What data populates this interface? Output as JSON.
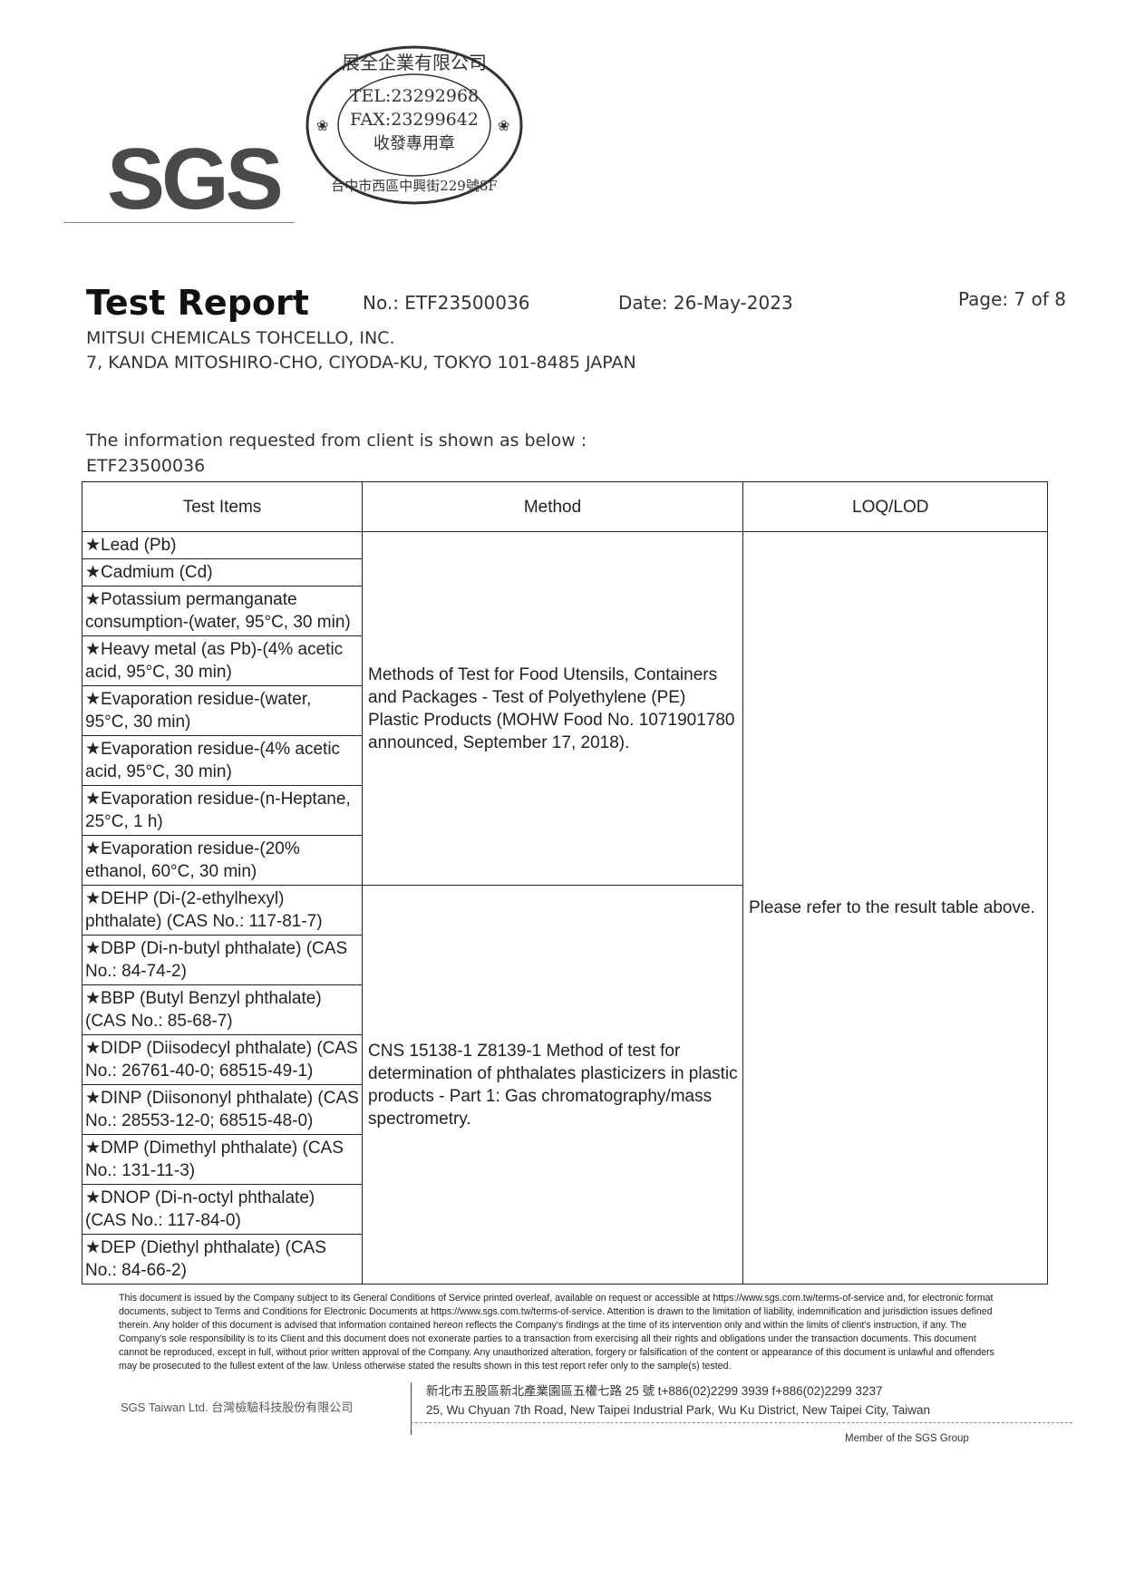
{
  "logo": {
    "text": "SGS"
  },
  "stamp": {
    "company": "展全企業有限公司",
    "tel": "TEL:23292968",
    "fax": "FAX:23299642",
    "purpose": "收發專用章",
    "address": "台中市西區中興街229號8F"
  },
  "header": {
    "title": "Test Report",
    "report_no": "No.: ETF23500036",
    "date": "Date: 26-May-2023",
    "page": "Page: 7 of 8",
    "client": "MITSUI CHEMICALS TOHCELLO, INC.",
    "client_address": "7, KANDA MITOSHIRO-CHO, CIYODA-KU, TOKYO 101-8485 JAPAN"
  },
  "intro": {
    "line1": "The information requested from client is shown as below :",
    "line2": "ETF23500036"
  },
  "table": {
    "headers": [
      "Test Items",
      "Method",
      "LOQ/LOD"
    ],
    "items": [
      "★Lead (Pb)",
      "★Cadmium (Cd)",
      "★Potassium permanganate consumption-(water, 95°C, 30 min)",
      "★Heavy metal (as Pb)-(4% acetic acid, 95°C, 30 min)",
      "★Evaporation residue-(water, 95°C, 30 min)",
      "★Evaporation residue-(4% acetic acid, 95°C, 30 min)",
      "★Evaporation residue-(n-Heptane, 25°C, 1 h)",
      "★Evaporation residue-(20% ethanol, 60°C, 30 min)",
      "★DEHP (Di-(2-ethylhexyl) phthalate) (CAS No.: 117-81-7)",
      "★DBP (Di-n-butyl phthalate) (CAS No.: 84-74-2)",
      "★BBP (Butyl Benzyl phthalate) (CAS No.: 85-68-7)",
      "★DIDP (Diisodecyl phthalate) (CAS No.: 26761-40-0; 68515-49-1)",
      "★DINP (Diisononyl phthalate) (CAS No.: 28553-12-0; 68515-48-0)",
      "★DMP (Dimethyl phthalate) (CAS No.: 131-11-3)",
      "★DNOP (Di-n-octyl phthalate) (CAS No.: 117-84-0)",
      "★DEP (Diethyl phthalate) (CAS No.: 84-66-2)"
    ],
    "method1": "Methods of Test for Food Utensils, Containers and Packages - Test of Polyethylene (PE) Plastic Products (MOHW Food No. 1071901780 announced, September 17, 2018).",
    "method2": "CNS 15138-1 Z8139-1 Method of test for determination of phthalates plasticizers in plastic products - Part 1: Gas chromatography/mass spectrometry.",
    "loq": "Please refer to the result table above."
  },
  "footer": {
    "fine_a": "This document is issued by the Company subject to its General Conditions of Service printed overleaf, available on request or accessible at ",
    "link": "https://www.sgs.com.tw/terms-of-service",
    "fine_b": " and, for electronic format documents, subject to Terms and Conditions for Electronic Documents at ",
    "fine_c": ". Attention is drawn to the limitation of liability, indemnification and jurisdiction issues defined therein. Any holder of this document is advised that information contained hereon reflects the Company's findings at the time of its intervention only and within the limits of client's instruction, if any. The Company's sole responsibility is to its Client and this document does not exonerate parties to a transaction from exercising all their rights and obligations under the transaction documents. This document cannot be reproduced, except in full, without prior written approval of the Company. Any unauthorized alteration, forgery or falsification of the content or appearance of this document is unlawful and offenders may be prosecuted to the fullest extent of the law. Unless otherwise stated the results shown in this test report refer only to the sample(s) tested.",
    "company": "SGS Taiwan Ltd. 台灣檢驗科技股份有限公司",
    "address_cn": "新北市五股區新北產業園區五權七路 25 號   t+886(02)2299 3939      f+886(02)2299 3237",
    "address_en": "25, Wu Chyuan 7th Road, New Taipei Industrial Park, Wu Ku District, New Taipei City, Taiwan",
    "member": "Member of the SGS Group"
  }
}
